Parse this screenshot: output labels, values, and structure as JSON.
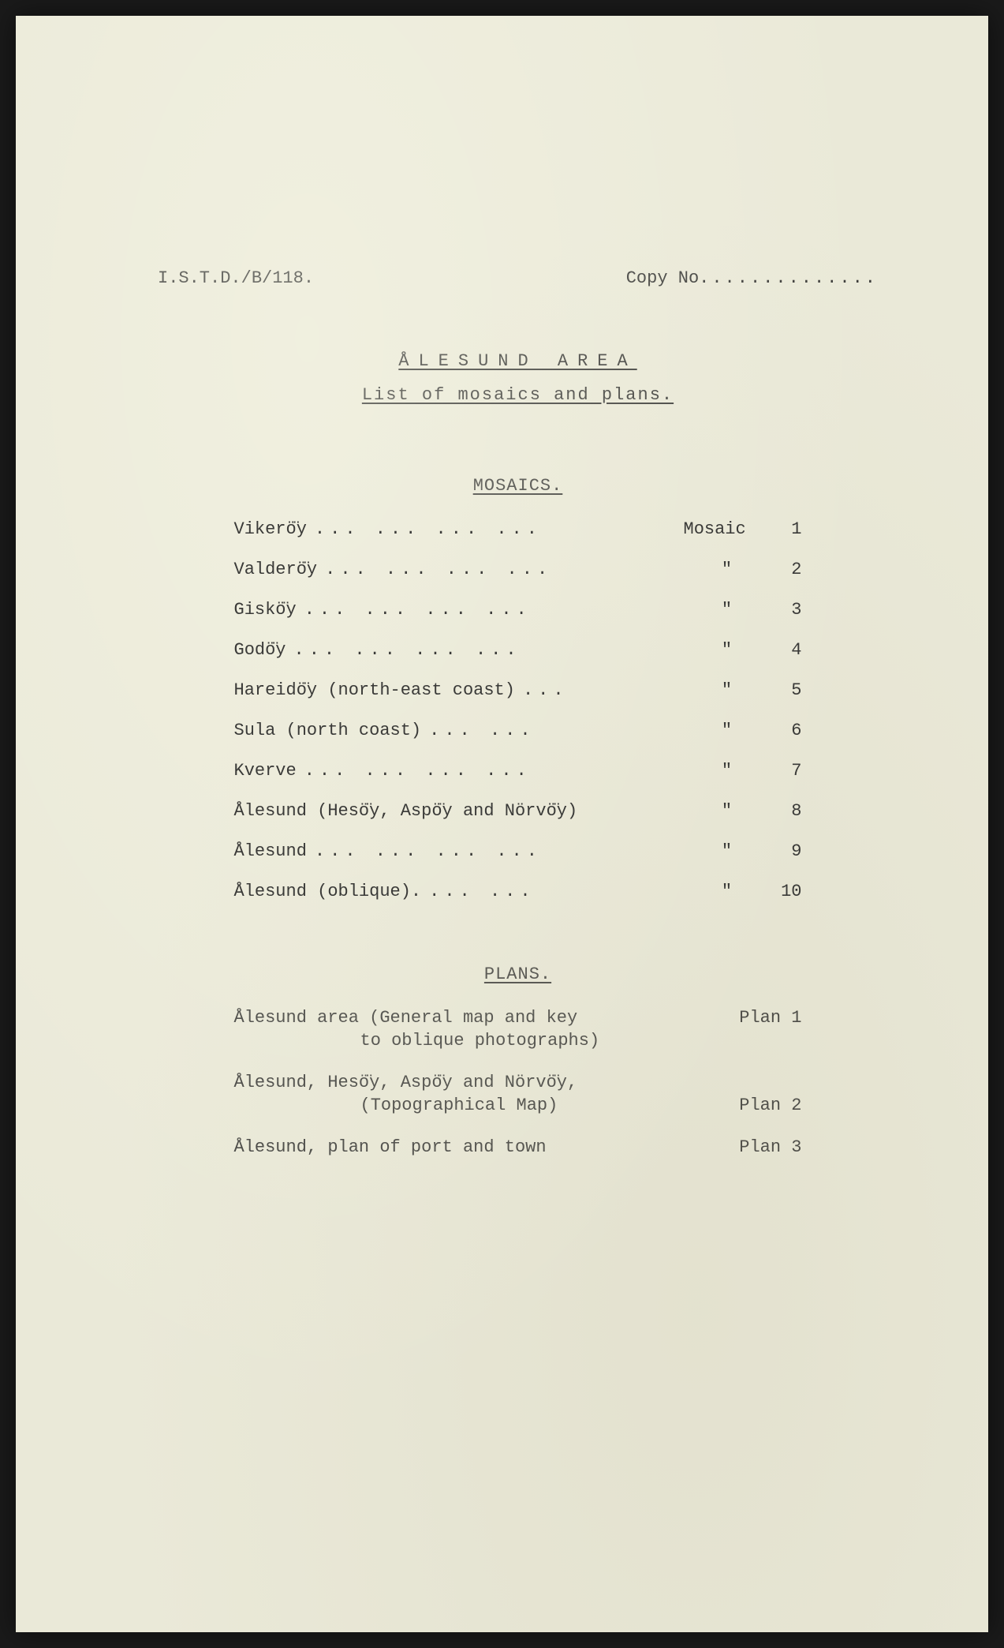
{
  "page": {
    "background_color": "#eae9d8",
    "text_color": "#3a3a38",
    "font_family": "Courier New",
    "font_size_pt": 16
  },
  "header": {
    "ref": "I.S.T.D./B/118.",
    "copy_label": "Copy No",
    "copy_dots": ".............."
  },
  "title": {
    "main": "ÅLESUND  AREA",
    "sub": "List of mosaics and plans."
  },
  "sections": {
    "mosaics": {
      "heading": "MOSAICS.",
      "label_first": "Mosaic",
      "ditto": "\"",
      "items": [
        {
          "name": "Vikerö̈y",
          "dots": "...   ...   ...   ...",
          "num": "1"
        },
        {
          "name": "Valderö̈y",
          "dots": "...   ...   ...   ...",
          "num": "2"
        },
        {
          "name": "Giskö̈y",
          "dots": "...   ...   ...   ...",
          "num": "3"
        },
        {
          "name": "Godö̈y",
          "dots": "...   ...   ...   ...",
          "num": "4"
        },
        {
          "name": "Hareidö̈y (north-east coast)",
          "dots": "...",
          "num": "5"
        },
        {
          "name": "Sula (north coast)",
          "dots": "...   ...",
          "num": "6"
        },
        {
          "name": "Kverve",
          "dots": "...   ...   ...   ...",
          "num": "7"
        },
        {
          "name": "Ålesund (Hesö̈y, Aspö̈y and Nörvö̈y)",
          "dots": "",
          "num": "8"
        },
        {
          "name": "Ålesund",
          "dots": "...   ...   ...   ...",
          "num": "9"
        },
        {
          "name": "Ålesund (oblique).",
          "dots": "...   ...",
          "num": "10"
        }
      ]
    },
    "plans": {
      "heading": "PLANS.",
      "items": [
        {
          "name": "Ålesund area (General map and key",
          "sub": "to oblique photographs)",
          "label": "Plan 1"
        },
        {
          "name": "Ålesund, Hesö̈y, Aspö̈y and Nörvö̈y,",
          "sub": "(Topographical Map)",
          "label": "Plan 2"
        },
        {
          "name": "Ålesund, plan of port and town",
          "sub": "",
          "label": "Plan 3"
        }
      ]
    }
  }
}
